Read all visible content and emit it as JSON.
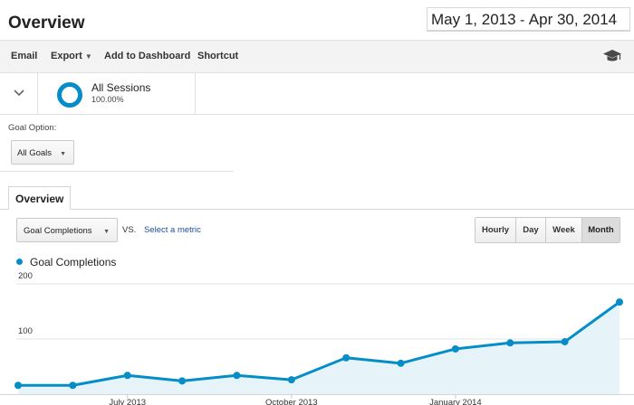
{
  "header": {
    "title": "Overview",
    "date_start": "May 1, 2013",
    "date_separator": " - ",
    "date_end": "Apr 30, 2014"
  },
  "toolbar": {
    "email_label": "Email",
    "export_label": "Export",
    "add_to_dashboard_label": "Add to Dashboard",
    "shortcut_label": "Shortcut",
    "help_icon": "graduation-cap-icon"
  },
  "segment": {
    "name": "All Sessions",
    "percent": "100.00%",
    "ring_color": "#058dc7"
  },
  "goal_option": {
    "label": "Goal Option:",
    "selected": "All Goals"
  },
  "tabs": [
    {
      "label": "Overview",
      "active": true
    }
  ],
  "controls": {
    "metric_selected": "Goal Completions",
    "vs_label": "VS.",
    "select_metric_link": "Select a metric",
    "periods": [
      {
        "label": "Hourly",
        "active": false
      },
      {
        "label": "Day",
        "active": false
      },
      {
        "label": "Week",
        "active": false
      },
      {
        "label": "Month",
        "active": true
      }
    ]
  },
  "chart_data": {
    "type": "area",
    "series": [
      {
        "name": "Goal Completions",
        "color": "#058dc7",
        "x": [
          "2013-05-01",
          "2013-06-01",
          "2013-07-01",
          "2013-08-01",
          "2013-09-01",
          "2013-10-01",
          "2013-11-01",
          "2013-12-01",
          "2014-01-01",
          "2014-02-01",
          "2014-03-01",
          "2014-04-01"
        ],
        "values": [
          16,
          16,
          34,
          24,
          34,
          26,
          66,
          56,
          82,
          93,
          95,
          167
        ]
      }
    ],
    "y_ticks": [
      "100",
      "200"
    ],
    "x_tick_labels": [
      {
        "label": "July 2013",
        "date": "2013-07-01"
      },
      {
        "label": "October 2013",
        "date": "2013-10-01"
      },
      {
        "label": "January 2014",
        "date": "2014-01-01"
      }
    ],
    "ylim": [
      0,
      200
    ],
    "grid": true,
    "legend_position": "top-left"
  }
}
